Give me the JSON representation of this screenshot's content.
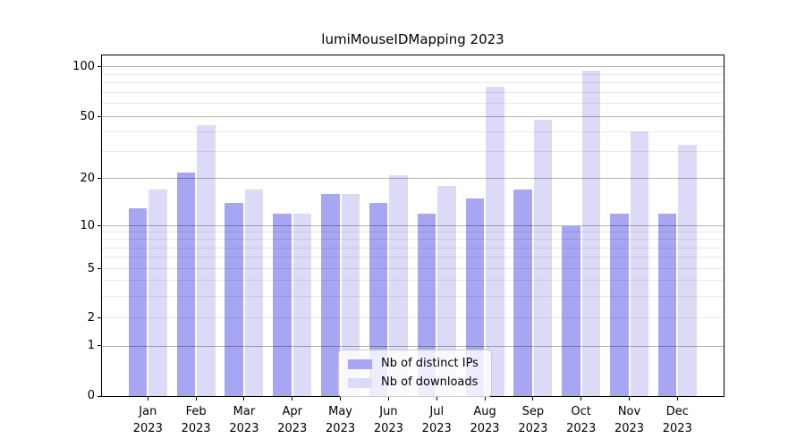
{
  "chart_data": {
    "type": "bar",
    "title": "lumiMouseIDMapping 2023",
    "categories": [
      "Jan",
      "Feb",
      "Mar",
      "Apr",
      "May",
      "Jun",
      "Jul",
      "Aug",
      "Sep",
      "Oct",
      "Nov",
      "Dec"
    ],
    "year": "2023",
    "series": [
      {
        "name": "Nb of distinct IPs",
        "color": "#a6a6f2",
        "values": [
          13,
          22,
          14,
          12,
          16,
          14,
          12,
          15,
          17,
          10,
          12,
          12
        ]
      },
      {
        "name": "Nb of downloads",
        "color": "#dbdbf8",
        "values": [
          17,
          44,
          17,
          12,
          16,
          21,
          18,
          76,
          48,
          95,
          40,
          33
        ]
      }
    ],
    "yscale": "symlog-like",
    "ylim": [
      0,
      119
    ],
    "yticks": [
      0,
      1,
      2,
      5,
      10,
      20,
      50,
      100
    ],
    "grid_major": [
      1,
      10,
      20,
      50,
      100
    ],
    "grid_minor": [
      2,
      3,
      4,
      5,
      6,
      7,
      8,
      9,
      30,
      40,
      60,
      70,
      80,
      90
    ],
    "scale_anchors": {
      "values": [
        0,
        1,
        2,
        5,
        10,
        20,
        50,
        100
      ],
      "fractions": [
        0,
        0.147,
        0.229,
        0.374,
        0.5,
        0.638,
        0.82,
        0.966
      ]
    },
    "legend_position": "lower center",
    "colors": {
      "grid_major": "#b2b2b2",
      "grid_minor": "#e9e9e9",
      "spine": "#000000",
      "text": "#000000",
      "background": "#ffffff"
    }
  }
}
